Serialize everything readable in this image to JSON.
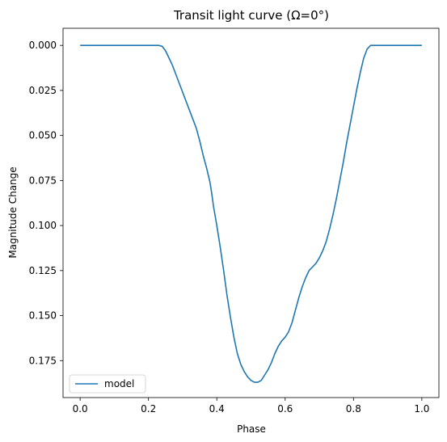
{
  "chart_data": {
    "type": "line",
    "title": "Transit light curve (Ω=0°)",
    "xlabel": "Phase",
    "ylabel": "Magnitude Change",
    "xlim": [
      -0.05,
      1.05
    ],
    "ylim": [
      0.1955,
      -0.0095
    ],
    "y_inverted": true,
    "xticks": [
      "0.0",
      "0.2",
      "0.4",
      "0.6",
      "0.8",
      "1.0"
    ],
    "xtick_values": [
      0.0,
      0.2,
      0.4,
      0.6,
      0.8,
      1.0
    ],
    "yticks": [
      "0.000",
      "0.025",
      "0.050",
      "0.075",
      "0.100",
      "0.125",
      "0.150",
      "0.175"
    ],
    "ytick_values": [
      0.0,
      0.025,
      0.05,
      0.075,
      0.1,
      0.125,
      0.15,
      0.175
    ],
    "grid": false,
    "legend_position": "lower-left",
    "series": [
      {
        "name": "model",
        "color": "#1f77b4",
        "x": [
          0.0,
          0.05,
          0.1,
          0.15,
          0.2,
          0.22,
          0.23,
          0.24,
          0.25,
          0.26,
          0.27,
          0.28,
          0.29,
          0.3,
          0.31,
          0.32,
          0.33,
          0.34,
          0.35,
          0.36,
          0.37,
          0.38,
          0.385,
          0.39,
          0.4,
          0.405,
          0.41,
          0.42,
          0.425,
          0.43,
          0.44,
          0.45,
          0.46,
          0.47,
          0.48,
          0.49,
          0.5,
          0.51,
          0.52,
          0.53,
          0.54,
          0.55,
          0.56,
          0.57,
          0.58,
          0.59,
          0.6,
          0.61,
          0.62,
          0.63,
          0.64,
          0.65,
          0.66,
          0.67,
          0.68,
          0.69,
          0.7,
          0.71,
          0.72,
          0.73,
          0.74,
          0.75,
          0.76,
          0.77,
          0.78,
          0.79,
          0.8,
          0.81,
          0.82,
          0.83,
          0.84,
          0.85,
          0.86,
          0.87,
          0.88,
          0.89,
          0.9,
          0.95,
          1.0
        ],
        "y": [
          0.0,
          0.0,
          0.0,
          0.0,
          0.0,
          0.0,
          0.0,
          0.0005,
          0.003,
          0.007,
          0.011,
          0.016,
          0.021,
          0.026,
          0.031,
          0.036,
          0.041,
          0.046,
          0.053,
          0.061,
          0.068,
          0.076,
          0.082,
          0.089,
          0.1,
          0.106,
          0.112,
          0.125,
          0.132,
          0.139,
          0.151,
          0.162,
          0.171,
          0.177,
          0.181,
          0.184,
          0.186,
          0.187,
          0.187,
          0.186,
          0.183,
          0.18,
          0.176,
          0.171,
          0.167,
          0.164,
          0.162,
          0.159,
          0.154,
          0.147,
          0.14,
          0.134,
          0.129,
          0.125,
          0.123,
          0.121,
          0.118,
          0.114,
          0.109,
          0.102,
          0.094,
          0.085,
          0.075,
          0.065,
          0.054,
          0.044,
          0.034,
          0.024,
          0.015,
          0.007,
          0.002,
          0.0,
          0.0,
          0.0,
          0.0,
          0.0,
          0.0,
          0.0,
          0.0
        ]
      }
    ]
  }
}
